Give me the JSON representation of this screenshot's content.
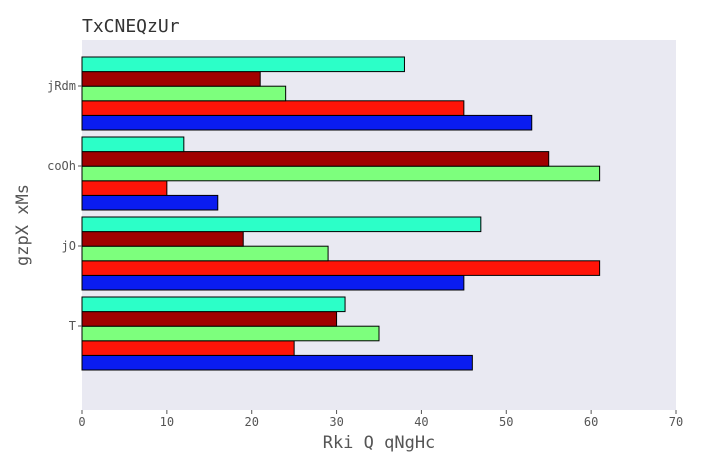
{
  "chart_data": {
    "type": "bar",
    "orientation": "horizontal",
    "title": "TxCNEQzUr",
    "xlabel": "Rki Q  qNgHc",
    "ylabel": "gzpX xMs",
    "categories": [
      "T",
      "jO",
      "coOh",
      "jRdm"
    ],
    "xlim": [
      0,
      70
    ],
    "xticks": [
      0,
      10,
      20,
      30,
      40,
      50,
      60,
      70
    ],
    "grid": false,
    "legend": "none",
    "background": "#e9e9f2",
    "series": [
      {
        "color": "#0a1cf0",
        "values": [
          46,
          45,
          16,
          53
        ]
      },
      {
        "color": "#ff1408",
        "values": [
          25,
          61,
          10,
          45
        ]
      },
      {
        "color": "#7dff7d",
        "values": [
          35,
          29,
          61,
          24
        ]
      },
      {
        "color": "#a00000",
        "values": [
          30,
          19,
          55,
          21
        ]
      },
      {
        "color": "#2cffc8",
        "values": [
          31,
          47,
          12,
          38
        ]
      }
    ]
  }
}
